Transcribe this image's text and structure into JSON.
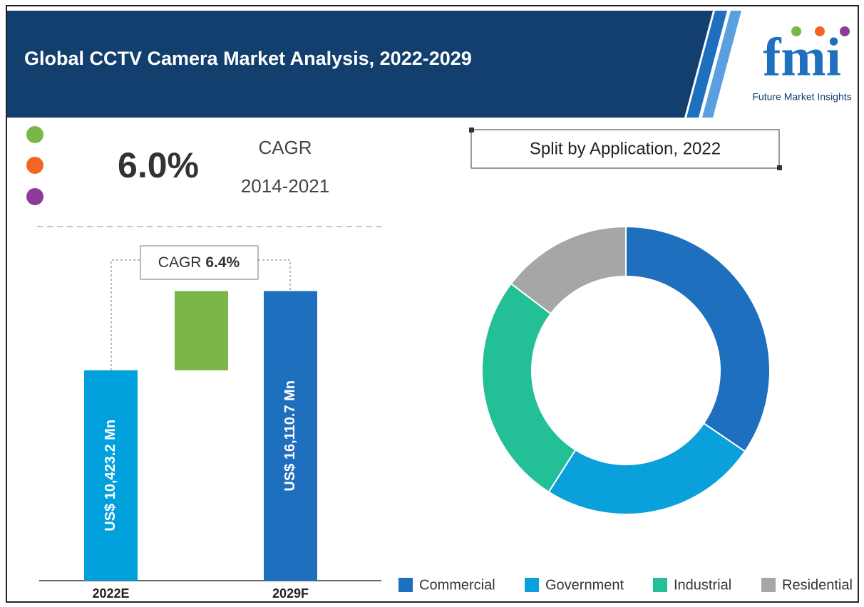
{
  "header": {
    "title": "Global CCTV Camera Market Analysis, 2022-2029",
    "logo": "fmi",
    "logo_subtitle": "Future Market Insights"
  },
  "cagr_box": {
    "value": "6.0%",
    "label": "CAGR",
    "period": "2014-2021"
  },
  "chart_data": [
    {
      "type": "waterfall",
      "categories": [
        "2022E",
        null,
        "2029F"
      ],
      "values": [
        10423.2,
        5687.5,
        16110.7
      ],
      "value_labels": [
        "US$ 10,423.2 Mn",
        null,
        "US$ 16,110.7 Mn"
      ],
      "measure": [
        "absolute",
        "relative",
        "absolute"
      ],
      "colors": [
        "#00a0dc",
        "#7ab648",
        "#1f6fbf"
      ],
      "ylim": [
        -4700,
        16500
      ],
      "annotation": {
        "label": "CAGR",
        "value": "6.4%"
      }
    },
    {
      "type": "donut",
      "title": "Split by Application, 2022",
      "categories": [
        "Commercial",
        "Government",
        "Industrial",
        "Residential"
      ],
      "values": [
        34.5,
        24.5,
        26.3,
        14.7
      ],
      "colors": [
        "#1f6fbf",
        "#0aa0dc",
        "#23bf96",
        "#a6a6a6"
      ],
      "legend": "bottom"
    }
  ]
}
